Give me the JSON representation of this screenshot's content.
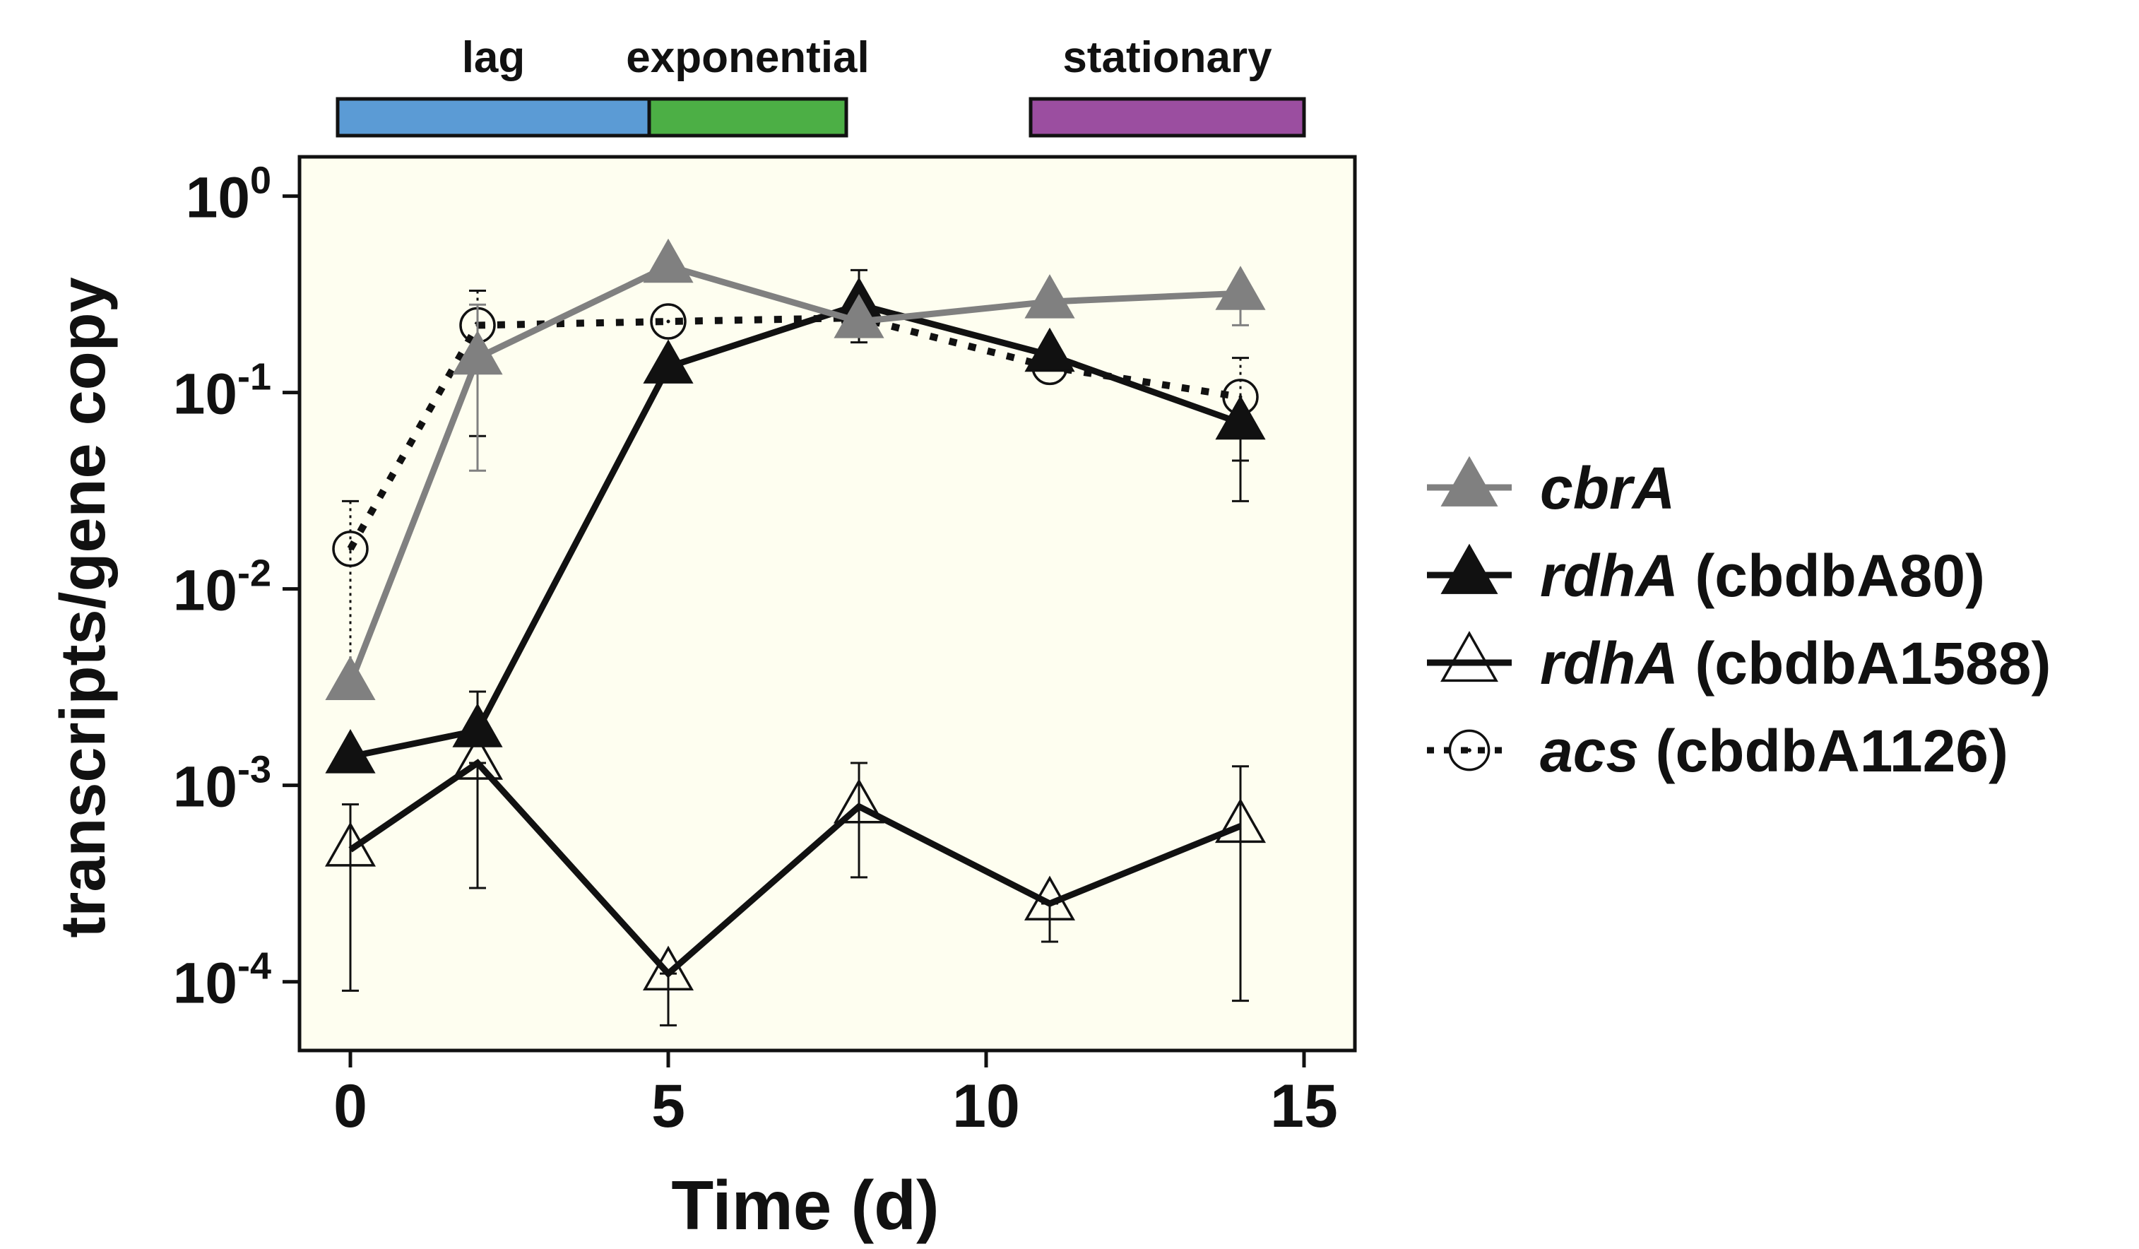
{
  "chart_data": {
    "type": "line",
    "x_scale": "linear",
    "y_scale": "log",
    "xlabel": "Time (d)",
    "ylabel": "transcripts/gene copy",
    "xlim": [
      -0.8,
      15.8
    ],
    "ylim_log10": [
      -4.35,
      0.2
    ],
    "x_ticks": [
      0,
      5,
      10,
      15
    ],
    "y_tick_exponents": [
      0,
      -1,
      -2,
      -3,
      -4
    ],
    "y_tick_base": "10",
    "grid": false,
    "plot_background": "#fefef0",
    "legend_position": "right",
    "phases": [
      {
        "label": "lag",
        "start": -0.2,
        "end": 4.7,
        "color": "#5b9bd5"
      },
      {
        "label": "exponential",
        "start": 4.7,
        "end": 7.8,
        "color": "#4caf45"
      },
      {
        "label": "stationary",
        "start": 10.7,
        "end": 15.0,
        "color": "#9b4ea0"
      }
    ],
    "series": [
      {
        "name_italic": "cbrA",
        "name_rest": "",
        "color": "#808080",
        "marker": "triangle-filled",
        "line": "solid",
        "x": [
          0,
          2,
          5,
          8,
          11,
          14
        ],
        "y": [
          0.0033,
          0.15,
          0.44,
          0.23,
          0.29,
          0.32
        ],
        "err_low": [
          0.0033,
          0.04,
          0.44,
          0.23,
          0.29,
          0.22
        ],
        "err_high": [
          0.0033,
          0.28,
          0.44,
          0.23,
          0.29,
          0.32
        ]
      },
      {
        "name_italic": "rdhA",
        "name_rest": " (cbdbA80)",
        "color": "#111111",
        "marker": "triangle-filled",
        "line": "solid",
        "x": [
          0,
          2,
          5,
          8,
          11,
          14
        ],
        "y": [
          0.0014,
          0.0019,
          0.135,
          0.28,
          0.155,
          0.07
        ],
        "err_low": [
          0.0014,
          0.0019,
          0.135,
          0.18,
          0.155,
          0.028
        ],
        "err_high": [
          0.0014,
          0.003,
          0.135,
          0.42,
          0.155,
          0.07
        ]
      },
      {
        "name_italic": "rdhA",
        "name_rest": " (cbdbA1588)",
        "color": "#111111",
        "marker": "triangle-open",
        "line": "solid",
        "x": [
          0,
          2,
          5,
          8,
          11,
          14
        ],
        "y": [
          0.00047,
          0.0013,
          0.00011,
          0.00078,
          0.00025,
          0.00062
        ],
        "err_low": [
          9e-05,
          0.0003,
          6e-05,
          0.00034,
          0.00016,
          8e-05
        ],
        "err_high": [
          0.0008,
          0.0013,
          0.00011,
          0.0013,
          0.00025,
          0.00125
        ]
      },
      {
        "name_italic": "acs",
        "name_rest": " (cbdbA1126)",
        "color": "#111111",
        "marker": "circle-open",
        "line": "dotted",
        "x": [
          0,
          2,
          5,
          8,
          11,
          14
        ],
        "y": [
          0.016,
          0.22,
          0.23,
          0.24,
          0.135,
          0.095
        ],
        "err_low": [
          0.0035,
          0.06,
          0.23,
          0.24,
          0.135,
          0.045
        ],
        "err_high": [
          0.028,
          0.33,
          0.23,
          0.24,
          0.135,
          0.15
        ]
      }
    ]
  }
}
